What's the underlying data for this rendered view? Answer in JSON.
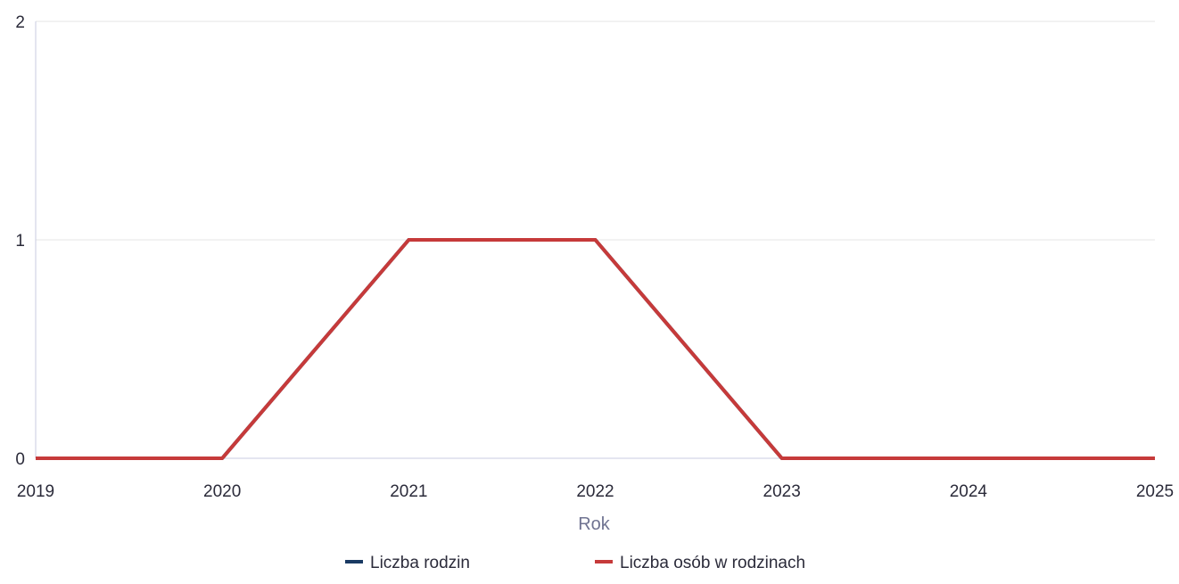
{
  "chart_data": {
    "type": "line",
    "title": "",
    "xlabel": "Rok",
    "ylabel": "",
    "x": [
      2019,
      2020,
      2021,
      2022,
      2023,
      2024,
      2025
    ],
    "x_tick_labels": [
      "2019",
      "2020",
      "2021",
      "2022",
      "2023",
      "2024",
      "2025"
    ],
    "y_tick_labels": [
      "0",
      "1",
      "2"
    ],
    "xlim": [
      2019,
      2025
    ],
    "ylim": [
      0,
      2
    ],
    "grid": true,
    "legend_position": "bottom",
    "series": [
      {
        "name": "Liczba rodzin",
        "color": "#1a3a63",
        "values": [
          0,
          0,
          1,
          1,
          0,
          0,
          0
        ]
      },
      {
        "name": "Liczba osób w rodzinach",
        "color": "#c63a3a",
        "values": [
          0,
          0,
          1,
          1,
          0,
          0,
          0
        ]
      }
    ],
    "colors": {
      "grid": "#e6e6e6",
      "axis": "#c8cbe0",
      "tick_text": "#2b2b3a",
      "axis_title": "#6f7391"
    }
  }
}
